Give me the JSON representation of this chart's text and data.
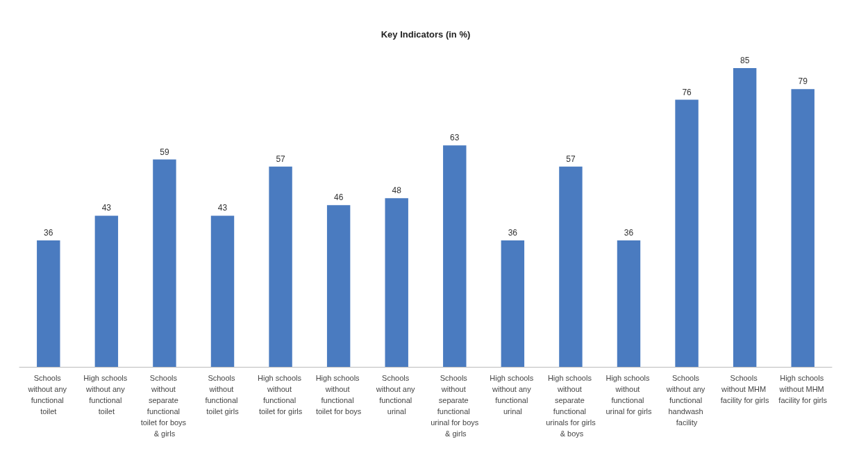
{
  "chart_data": {
    "type": "bar",
    "title": "Key Indicators (in %)",
    "categories": [
      "Schools without any functional toilet",
      "High schools without any functional toilet",
      "Schools without separate functional toilet for boys & girls",
      "Schools without functional toilet girls",
      "High schools without functional toilet for girls",
      "High schools without functional toilet for boys",
      "Schools without any functional urinal",
      "Schools without separate functional urinal for boys & girls",
      "High schools without any functional urinal",
      "High schools without separate functional urinals for girls & boys",
      "High schools without functional urinal for girls",
      "Schools without any functional handwash facility",
      "Schools without MHM facility for girls",
      "High schools without MHM facility for girls"
    ],
    "values": [
      36,
      43,
      59,
      43,
      57,
      46,
      48,
      63,
      36,
      57,
      36,
      76,
      85,
      79
    ],
    "color": "#4a7bc0",
    "data_labels": true,
    "tick_labels": "x"
  }
}
